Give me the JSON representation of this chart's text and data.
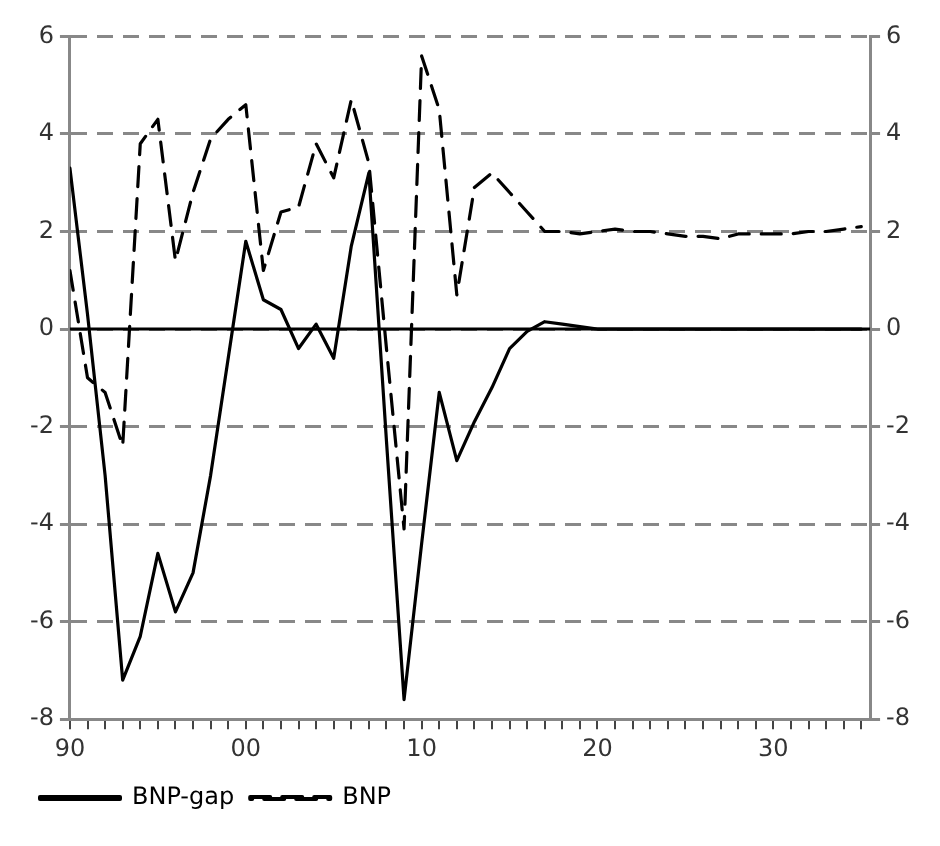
{
  "chart_data": {
    "type": "line",
    "x": [
      1990,
      1991,
      1992,
      1993,
      1994,
      1995,
      1996,
      1997,
      1998,
      1999,
      2000,
      2001,
      2002,
      2003,
      2004,
      2005,
      2006,
      2007,
      2008,
      2009,
      2010,
      2011,
      2012,
      2013,
      2014,
      2015,
      2016,
      2017,
      2018,
      2019,
      2020,
      2021,
      2022,
      2023,
      2024,
      2025,
      2026,
      2027,
      2028,
      2029,
      2030,
      2031,
      2032,
      2033,
      2034,
      2035
    ],
    "series": [
      {
        "name": "BNP-gap",
        "color": "#000000",
        "line_style": "solid",
        "values": [
          3.3,
          0.3,
          -3.0,
          -7.2,
          -6.3,
          -4.6,
          -5.8,
          -5.0,
          -3.0,
          -0.6,
          1.8,
          0.6,
          0.4,
          -0.4,
          0.1,
          -0.6,
          1.7,
          3.2,
          -2.3,
          -7.6,
          -4.4,
          -1.3,
          -2.7,
          -1.9,
          -1.2,
          -0.4,
          -0.05,
          0.15,
          0.1,
          0.05,
          0,
          0,
          0,
          0,
          0,
          0,
          0,
          0,
          0,
          0,
          0,
          0,
          0,
          0,
          0,
          0
        ]
      },
      {
        "name": "BNP",
        "color": "#000000",
        "line_style": "dashed",
        "values": [
          1.2,
          -1.0,
          -1.3,
          -2.4,
          3.8,
          4.3,
          1.4,
          2.8,
          3.9,
          4.3,
          4.6,
          1.2,
          2.4,
          2.5,
          3.8,
          3.1,
          4.7,
          3.4,
          -0.4,
          -4.1,
          5.6,
          4.5,
          0.7,
          2.9,
          3.2,
          2.8,
          2.4,
          2.0,
          2.0,
          1.95,
          2.0,
          2.05,
          2.0,
          2.0,
          1.95,
          1.9,
          1.9,
          1.85,
          1.95,
          1.95,
          1.95,
          1.95,
          2.0,
          2.0,
          2.05,
          2.1
        ]
      }
    ],
    "xlim": [
      1990,
      2035.5
    ],
    "xticks": [
      {
        "value": 1990,
        "label": "90"
      },
      {
        "value": 1991,
        "label": null
      },
      {
        "value": 1992,
        "label": null
      },
      {
        "value": 1993,
        "label": null
      },
      {
        "value": 1994,
        "label": null
      },
      {
        "value": 1995,
        "label": null
      },
      {
        "value": 1996,
        "label": null
      },
      {
        "value": 1997,
        "label": null
      },
      {
        "value": 1998,
        "label": null
      },
      {
        "value": 1999,
        "label": null
      },
      {
        "value": 2000,
        "label": "00"
      },
      {
        "value": 2001,
        "label": null
      },
      {
        "value": 2002,
        "label": null
      },
      {
        "value": 2003,
        "label": null
      },
      {
        "value": 2004,
        "label": null
      },
      {
        "value": 2005,
        "label": null
      },
      {
        "value": 2006,
        "label": null
      },
      {
        "value": 2007,
        "label": null
      },
      {
        "value": 2008,
        "label": null
      },
      {
        "value": 2009,
        "label": null
      },
      {
        "value": 2010,
        "label": "10"
      },
      {
        "value": 2011,
        "label": null
      },
      {
        "value": 2012,
        "label": null
      },
      {
        "value": 2013,
        "label": null
      },
      {
        "value": 2014,
        "label": null
      },
      {
        "value": 2015,
        "label": null
      },
      {
        "value": 2016,
        "label": null
      },
      {
        "value": 2017,
        "label": null
      },
      {
        "value": 2018,
        "label": null
      },
      {
        "value": 2019,
        "label": null
      },
      {
        "value": 2020,
        "label": "20"
      },
      {
        "value": 2021,
        "label": null
      },
      {
        "value": 2022,
        "label": null
      },
      {
        "value": 2023,
        "label": null
      },
      {
        "value": 2024,
        "label": null
      },
      {
        "value": 2025,
        "label": null
      },
      {
        "value": 2026,
        "label": null
      },
      {
        "value": 2027,
        "label": null
      },
      {
        "value": 2028,
        "label": null
      },
      {
        "value": 2029,
        "label": null
      },
      {
        "value": 2030,
        "label": "30"
      },
      {
        "value": 2031,
        "label": null
      },
      {
        "value": 2032,
        "label": null
      },
      {
        "value": 2033,
        "label": null
      },
      {
        "value": 2034,
        "label": null
      },
      {
        "value": 2035,
        "label": null
      }
    ],
    "ylim": [
      -8,
      6
    ],
    "yticks": [
      -8,
      -6,
      -4,
      -2,
      0,
      2,
      4,
      6
    ],
    "y2lim": [
      -8,
      6
    ],
    "y2ticks": [
      -8,
      -6,
      -4,
      -2,
      0,
      2,
      4,
      6
    ],
    "ref_lines": [
      {
        "axis": "y",
        "value": 0,
        "color": "#000000",
        "line_style": "solid"
      }
    ],
    "grid": "y",
    "legend": "bottom left",
    "marker": "none"
  }
}
